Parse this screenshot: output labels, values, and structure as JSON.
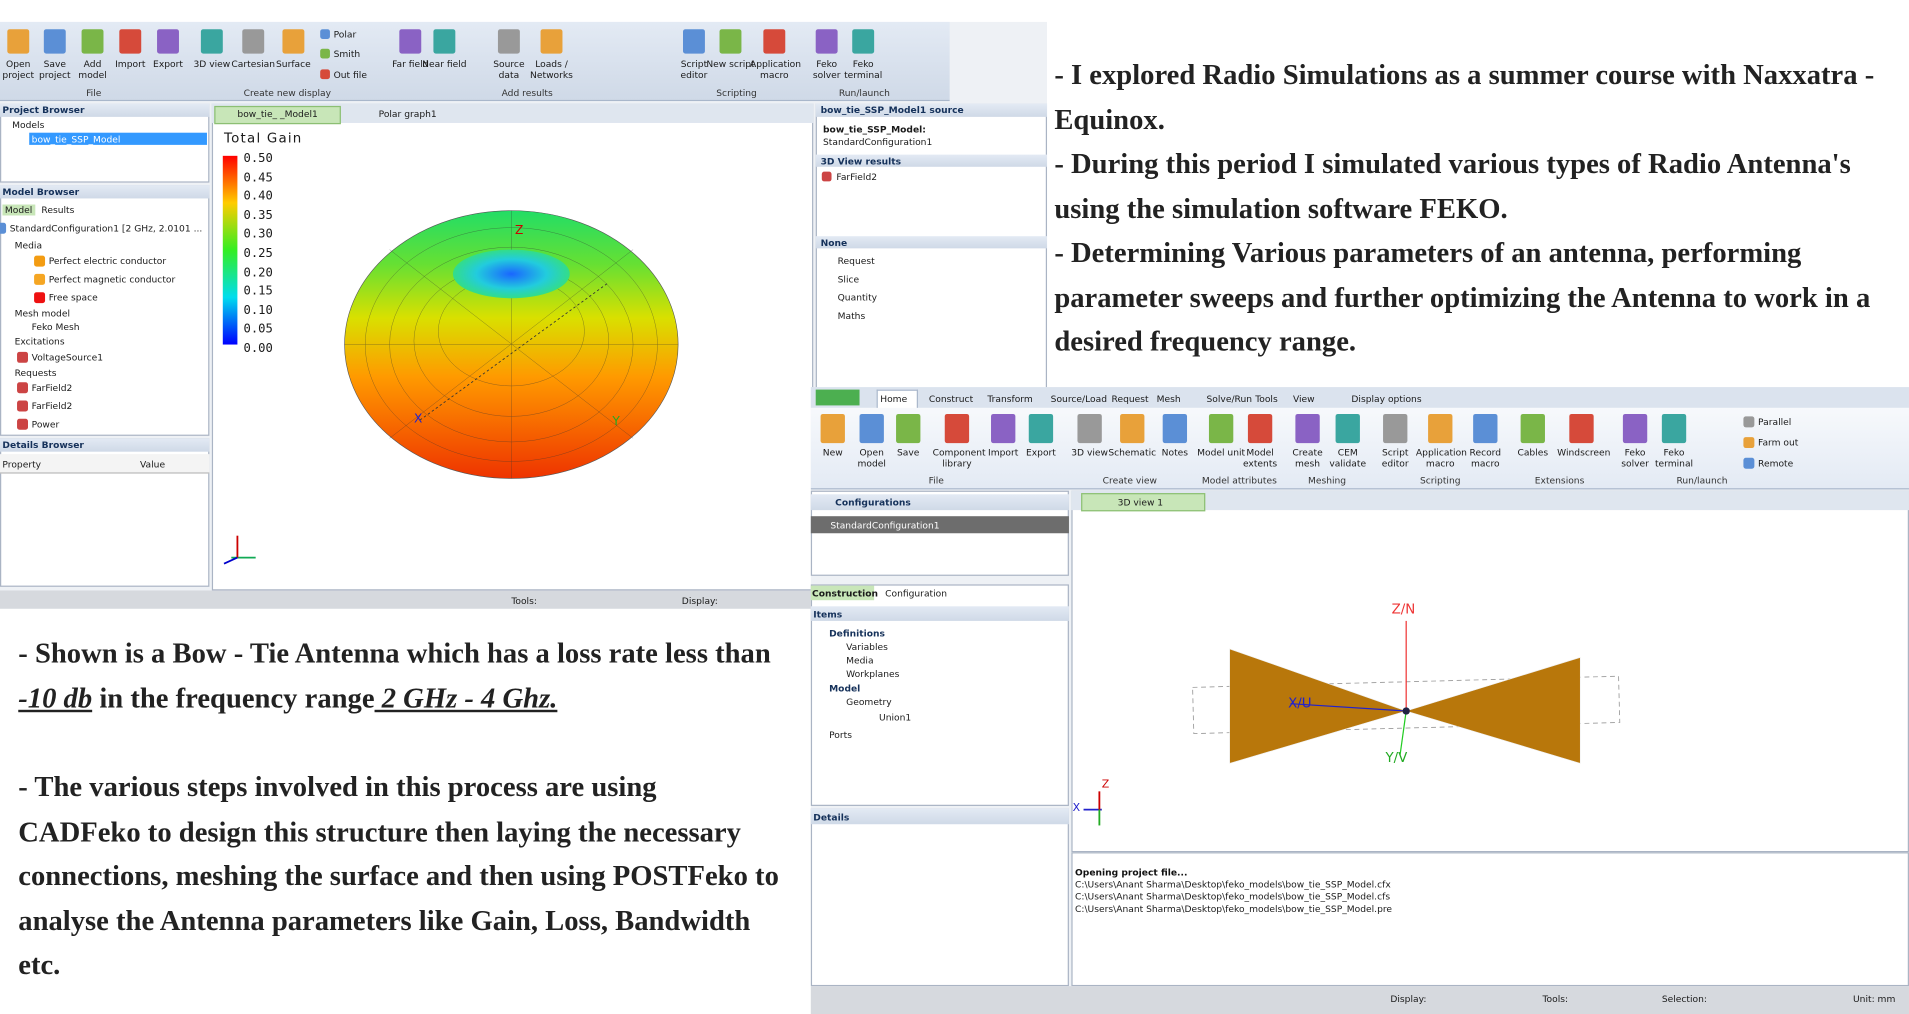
{
  "left_screenshot": {
    "ribbon": {
      "buttons": [
        "Open project",
        "Save project",
        "Add model",
        "Import",
        "Export",
        "3D view",
        "Cartesian",
        "Surface",
        "Polar",
        "Smith",
        "Out file",
        "Far field",
        "Near field",
        "Source data",
        "Loads / Networks",
        "Script editor",
        "New script",
        "Application macro",
        "Feko solver",
        "Feko terminal"
      ],
      "groups": [
        "File",
        "Create new display",
        "Add results",
        "Scripting",
        "Run/launch"
      ]
    },
    "project_browser": {
      "title": "Project Browser",
      "items": [
        "Models",
        "bow_tie_SSP_Model"
      ]
    },
    "model_browser": {
      "title": "Model Browser",
      "tabs": [
        "Model",
        "Results"
      ],
      "items": [
        "StandardConfiguration1 [2 GHz, 2.0101 ...",
        "Media",
        "Perfect electric conductor",
        "Perfect magnetic conductor",
        "Free space",
        "Mesh model",
        "Feko Mesh",
        "Excitations",
        "VoltageSource1",
        "Requests",
        "FarField2",
        "FarField2",
        "Power"
      ]
    },
    "details_browser": {
      "title": "Details Browser",
      "columns": [
        "Property",
        "Value"
      ]
    },
    "view_tabs": [
      "bow_tie_ _Model1",
      "Polar graph1"
    ],
    "legend": {
      "title": "Total Gain",
      "labels": [
        "0.50",
        "0.45",
        "0.40",
        "0.35",
        "0.30",
        "0.25",
        "0.20",
        "0.15",
        "0.10",
        "0.05",
        "0.00"
      ]
    },
    "axes": [
      "X",
      "Y",
      "Z"
    ],
    "status": [
      "Tools:",
      "Display:"
    ],
    "side_panel": {
      "title": "bow_tie_SSP_Model1 source",
      "source": [
        "bow_tie_SSP_Model:",
        "StandardConfiguration1"
      ],
      "results_title": "3D View results",
      "results": [
        "FarField2"
      ],
      "filter_title": "None",
      "filters": [
        "Request",
        "Slice",
        "Quantity",
        "Maths"
      ]
    }
  },
  "right_text": [
    "- I explored Radio Simulations as a summer course with Naxxatra - Equinox.",
    "- During this period I simulated various types of Radio Antenna's using the simulation software FEKO.",
    "- Determining Various parameters of an antenna, performing parameter sweeps and further optimizing the Antenna to work in a desired frequency range."
  ],
  "left_text": {
    "first": [
      "- Shown is a Bow - Tie Antenna which has a loss rate less than",
      " -10 db",
      " in the frequency range",
      " 2 GHz - 4 Ghz."
    ],
    "second": "- The various steps involved in this process are using CADFeko to design this structure then laying the necessary connections, meshing the surface and then using POSTFeko to analyse the Antenna parameters like Gain, Loss, Bandwidth etc."
  },
  "right_screenshot": {
    "tabs": [
      "Home",
      "Construct",
      "Transform",
      "Source/Load",
      "Request",
      "Mesh",
      "Solve/Run",
      "Tools",
      "View",
      "Display options"
    ],
    "buttons": [
      "New",
      "Open model",
      "Save",
      "Component library",
      "Import",
      "Export",
      "3D view",
      "Schematic",
      "Notes",
      "Model unit",
      "Model extents",
      "Create mesh",
      "CEM validate",
      "Script editor",
      "Application macro",
      "Record macro",
      "Cables",
      "Windscreen",
      "Feko solver",
      "Feko terminal",
      "Parallel",
      "Farm out",
      "Remote"
    ],
    "groups": [
      "File",
      "Create view",
      "Model attributes",
      "Meshing",
      "Scripting",
      "Extensions",
      "Run/launch"
    ],
    "configurations": {
      "title": "Configurations",
      "items": [
        "StandardConfiguration1"
      ]
    },
    "panel_tabs": [
      "Construction",
      "Configuration"
    ],
    "items": {
      "title": "Items",
      "tree": [
        "Definitions",
        "Variables",
        "Media",
        "Workplanes",
        "Model",
        "Geometry",
        "Union1",
        "Ports"
      ]
    },
    "details_title": "Details",
    "view_tab": "3D view 1",
    "axes": [
      "Z/N",
      "X/U",
      "Y/V"
    ],
    "mini_axes": [
      "X",
      "Z"
    ],
    "log": [
      "Opening project file...",
      "C:\\Users\\Anant Sharma\\Desktop\\feko_models\\bow_tie_SSP_Model.cfx",
      "C:\\Users\\Anant Sharma\\Desktop\\feko_models\\bow_tie_SSP_Model.cfs",
      "C:\\Users\\Anant Sharma\\Desktop\\feko_models\\bow_tie_SSP_Model.pre"
    ],
    "status": [
      "Display:",
      "Tools:",
      "Selection:",
      "Unit: mm"
    ]
  }
}
